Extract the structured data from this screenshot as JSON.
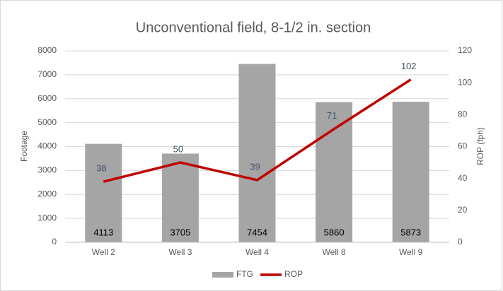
{
  "chart_data": {
    "type": "bar",
    "title": "Unconventional field, 8-1/2 in. section",
    "categories": [
      "Well 2",
      "Well 3",
      "Well 4",
      "Well 8",
      "Well 9"
    ],
    "series": [
      {
        "name": "FTG",
        "type": "bar",
        "color": "#a5a5a5",
        "values": [
          4113,
          3705,
          7454,
          5860,
          5873
        ]
      },
      {
        "name": "ROP",
        "type": "line",
        "axis": "y2",
        "color": "#c00000",
        "values": [
          38,
          50,
          39,
          71,
          102
        ]
      }
    ],
    "ylabel": "Footage",
    "y2label": "ROP (fph)",
    "ylim": [
      0,
      8000
    ],
    "yticks": [
      0,
      1000,
      2000,
      3000,
      4000,
      5000,
      6000,
      7000,
      8000
    ],
    "y2lim": [
      0,
      120
    ],
    "y2ticks": [
      0,
      20,
      40,
      60,
      80,
      100,
      120
    ],
    "grid": true,
    "legend": "bottom"
  }
}
